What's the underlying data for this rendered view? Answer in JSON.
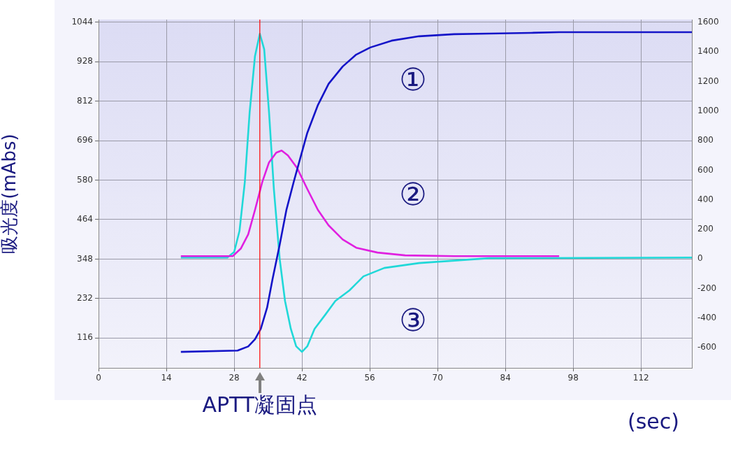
{
  "chart_data": {
    "type": "line",
    "xlabel": "(sec)",
    "ylabel": "吸光度(mAbs)",
    "xlim": [
      0,
      122.5
    ],
    "xticks": [
      0,
      14,
      28,
      42,
      56,
      70,
      84,
      98,
      112
    ],
    "ylim": [
      28,
      1052
    ],
    "yticks": [
      116,
      232,
      348,
      464,
      580,
      696,
      812,
      928,
      1044
    ],
    "y2lim": [
      -737,
      1619
    ],
    "y2ticks": [
      -600,
      -400,
      -200,
      0,
      200,
      400,
      600,
      800,
      1000,
      1200,
      1400,
      1600
    ],
    "grid": true,
    "legend": false,
    "marker": "none",
    "line_style": "solid",
    "ref_lines": [
      {
        "axis": "x",
        "value": 33.3,
        "label": "APTT凝固点",
        "color": "#ff0000"
      }
    ],
    "series": [
      {
        "name": "①",
        "color": "#1414c8",
        "x": [
          17.0,
          28.7,
          30.9,
          32.3,
          33.5,
          34.8,
          35.9,
          37.4,
          38.8,
          40.3,
          41.7,
          43.1,
          45.3,
          47.5,
          50.4,
          53.2,
          56.1,
          60.5,
          66.2,
          73.4,
          80.7,
          89.3,
          95.1,
          122.5
        ],
        "values": [
          75,
          79,
          91,
          112,
          143,
          205,
          287,
          390,
          493,
          575,
          647,
          719,
          801,
          863,
          914,
          949,
          970,
          990,
          1003,
          1009,
          1011,
          1013,
          1015,
          1015
        ]
      },
      {
        "name": "②",
        "color": "#e020e0",
        "axis": "y2",
        "x": [
          17.0,
          27.7,
          29.4,
          30.9,
          32.3,
          33.8,
          35.2,
          36.7,
          37.8,
          39.1,
          41.0,
          43.1,
          45.3,
          47.5,
          50.4,
          53.2,
          57.6,
          63.3,
          73.4,
          95.1
        ],
        "values": [
          19,
          19,
          71,
          166,
          331,
          520,
          653,
          719,
          733,
          700,
          615,
          473,
          331,
          227,
          132,
          76,
          43,
          24,
          19,
          19
        ]
      },
      {
        "name": "③",
        "color": "#20d8d8",
        "axis": "y2",
        "x": [
          17.0,
          26.6,
          28.0,
          29.1,
          30.2,
          31.2,
          32.3,
          33.3,
          34.2,
          35.2,
          36.2,
          37.4,
          38.5,
          39.7,
          40.8,
          42.0,
          43.1,
          44.6,
          46.8,
          48.9,
          51.8,
          54.7,
          59.0,
          66.2,
          80.7,
          122.5
        ],
        "values": [
          9,
          9,
          47,
          189,
          520,
          993,
          1372,
          1523,
          1419,
          993,
          473,
          0,
          -284,
          -473,
          -591,
          -629,
          -591,
          -473,
          -378,
          -284,
          -213,
          -118,
          -61,
          -28,
          5,
          9
        ]
      }
    ]
  }
}
